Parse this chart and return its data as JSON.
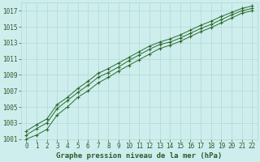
{
  "title": "Graphe pression niveau de la mer (hPa)",
  "xlabel_hours": [
    0,
    1,
    2,
    3,
    4,
    5,
    6,
    7,
    8,
    9,
    10,
    11,
    12,
    13,
    14,
    15,
    16,
    17,
    18,
    19,
    20,
    21,
    22
  ],
  "series": [
    [
      1002.0,
      1002.8,
      1003.5,
      1005.3,
      1006.2,
      1007.3,
      1008.2,
      1009.2,
      1009.8,
      1010.5,
      1011.2,
      1011.9,
      1012.6,
      1013.1,
      1013.5,
      1014.0,
      1014.6,
      1015.2,
      1015.7,
      1016.3,
      1016.8,
      1017.3,
      1017.6
    ],
    [
      1001.5,
      1002.3,
      1003.0,
      1004.8,
      1005.8,
      1006.8,
      1007.7,
      1008.7,
      1009.3,
      1010.0,
      1010.8,
      1011.5,
      1012.2,
      1012.8,
      1013.1,
      1013.6,
      1014.2,
      1014.8,
      1015.3,
      1015.9,
      1016.5,
      1017.0,
      1017.3
    ],
    [
      1001.0,
      1001.5,
      1002.2,
      1004.0,
      1005.0,
      1006.2,
      1007.0,
      1008.0,
      1008.7,
      1009.5,
      1010.2,
      1010.9,
      1011.6,
      1012.3,
      1012.7,
      1013.2,
      1013.8,
      1014.4,
      1014.9,
      1015.5,
      1016.1,
      1016.7,
      1017.0
    ]
  ],
  "line_color": "#2d6a2d",
  "marker_color": "#2d6a2d",
  "bg_color": "#cdeeed",
  "grid_color": "#b0d8d4",
  "text_color": "#2d5a2d",
  "ylim": [
    1001,
    1018
  ],
  "yticks": [
    1001,
    1003,
    1005,
    1007,
    1009,
    1011,
    1013,
    1015,
    1017
  ],
  "xlim": [
    -0.5,
    22.5
  ],
  "xticks": [
    0,
    1,
    2,
    3,
    4,
    5,
    6,
    7,
    8,
    9,
    10,
    11,
    12,
    13,
    14,
    15,
    16,
    17,
    18,
    19,
    20,
    21,
    22
  ],
  "title_fontsize": 6.5,
  "tick_fontsize": 5.5
}
